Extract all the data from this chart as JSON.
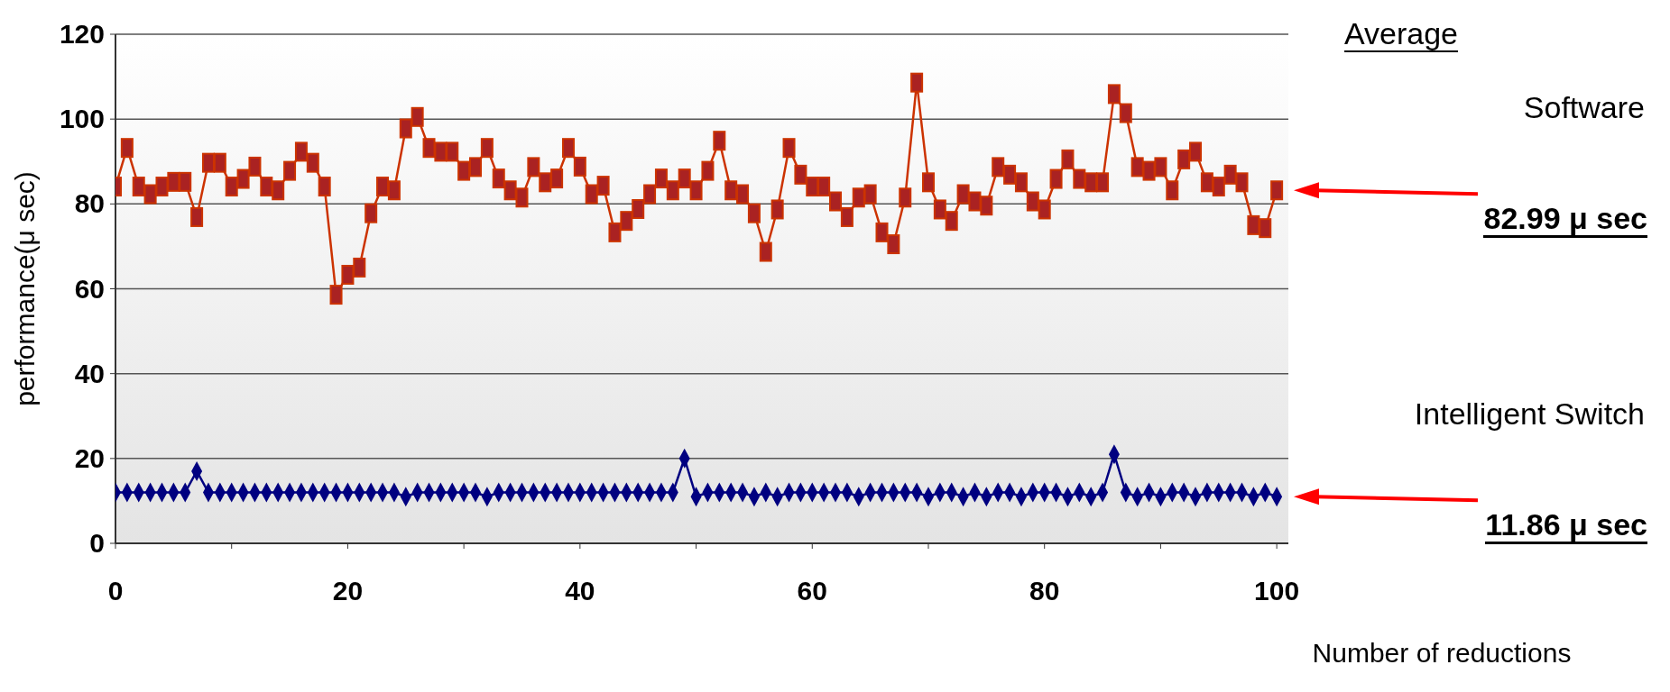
{
  "chart_data": {
    "type": "line",
    "xlabel": "Number of reductions",
    "ylabel": "performance(μ sec)",
    "x": [
      0,
      1,
      2,
      3,
      4,
      5,
      6,
      7,
      8,
      9,
      10,
      11,
      12,
      13,
      14,
      15,
      16,
      17,
      18,
      19,
      20,
      21,
      22,
      23,
      24,
      25,
      26,
      27,
      28,
      29,
      30,
      31,
      32,
      33,
      34,
      35,
      36,
      37,
      38,
      39,
      40,
      41,
      42,
      43,
      44,
      45,
      46,
      47,
      48,
      49,
      50,
      51,
      52,
      53,
      54,
      55,
      56,
      57,
      58,
      59,
      60,
      61,
      62,
      63,
      64,
      65,
      66,
      67,
      68,
      69,
      70,
      71,
      72,
      73,
      74,
      75,
      76,
      77,
      78,
      79,
      80,
      81,
      82,
      83,
      84,
      85,
      86,
      87,
      88,
      89,
      90,
      91,
      92,
      93,
      94,
      95,
      96,
      97,
      98,
      99,
      100
    ],
    "series": [
      {
        "name": "Software",
        "color": "#cc3300",
        "marker": "square",
        "values": [
          84.1,
          93.2,
          84.1,
          82.3,
          84.1,
          85.2,
          85.2,
          76.9,
          89.7,
          89.7,
          84.1,
          85.9,
          88.8,
          84.1,
          83.2,
          87.8,
          92.3,
          89.7,
          84.1,
          58.6,
          63.3,
          65.0,
          77.8,
          84.1,
          83.2,
          97.8,
          100.5,
          93.2,
          92.3,
          92.3,
          87.8,
          88.7,
          93.2,
          86.0,
          83.2,
          81.5,
          88.7,
          85.1,
          86.0,
          93.2,
          88.8,
          82.3,
          84.3,
          73.3,
          76.0,
          78.8,
          82.3,
          86.0,
          83.2,
          86.0,
          83.2,
          87.8,
          94.9,
          83.2,
          82.3,
          77.8,
          68.7,
          78.7,
          93.2,
          86.9,
          84.1,
          84.1,
          80.6,
          76.9,
          81.5,
          82.3,
          73.3,
          70.5,
          81.5,
          108.6,
          85.1,
          78.7,
          76.0,
          82.3,
          80.6,
          79.6,
          88.7,
          86.9,
          85.1,
          80.6,
          78.7,
          85.9,
          90.5,
          85.9,
          85.1,
          85.1,
          105.9,
          101.4,
          88.7,
          87.8,
          88.7,
          83.2,
          90.5,
          92.3,
          85.1,
          84.1,
          86.9,
          85.1,
          75.0,
          74.3,
          83.2
        ]
      },
      {
        "name": "Intelligent Switch",
        "color": "#000080",
        "marker": "diamond",
        "values": [
          12,
          12,
          12,
          12,
          12,
          12,
          12,
          17,
          12,
          12,
          12,
          12,
          12,
          12,
          12,
          12,
          12,
          12,
          12,
          12,
          12,
          12,
          12,
          12,
          12,
          11,
          12,
          12,
          12,
          12,
          12,
          12,
          11,
          12,
          12,
          12,
          12,
          12,
          12,
          12,
          12,
          12,
          12,
          12,
          12,
          12,
          12,
          12,
          12,
          20,
          11,
          12,
          12,
          12,
          12,
          11,
          12,
          11,
          12,
          12,
          12,
          12,
          12,
          12,
          11,
          12,
          12,
          12,
          12,
          12,
          11,
          12,
          12,
          11,
          12,
          11,
          12,
          12,
          11,
          12,
          12,
          12,
          11,
          12,
          11,
          12,
          21,
          12,
          11,
          12,
          11,
          12,
          12,
          11,
          12,
          12,
          12,
          12,
          11,
          12,
          11
        ]
      }
    ],
    "xlim": [
      0,
      101
    ],
    "xticks": [
      0,
      {
        "value": 10,
        "label": null
      },
      20,
      {
        "value": 30,
        "label": null
      },
      40,
      {
        "value": 50,
        "label": null
      },
      60,
      {
        "value": 70,
        "label": null
      },
      80,
      {
        "value": 90,
        "label": null
      },
      100
    ],
    "ylim": [
      0,
      120
    ],
    "yticks": [
      0,
      20,
      40,
      60,
      80,
      100,
      120
    ],
    "grid": "y",
    "legend": false,
    "line_style": "solid",
    "annotations": [
      "Average",
      "82.99 μ sec",
      "11.86 μ sec"
    ]
  }
}
